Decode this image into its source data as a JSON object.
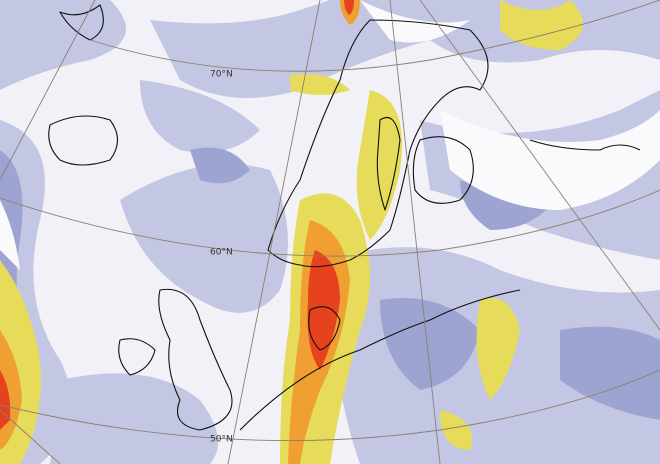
{
  "map": {
    "latitude_labels": [
      "70°N",
      "60°N",
      "50°N"
    ]
  }
}
